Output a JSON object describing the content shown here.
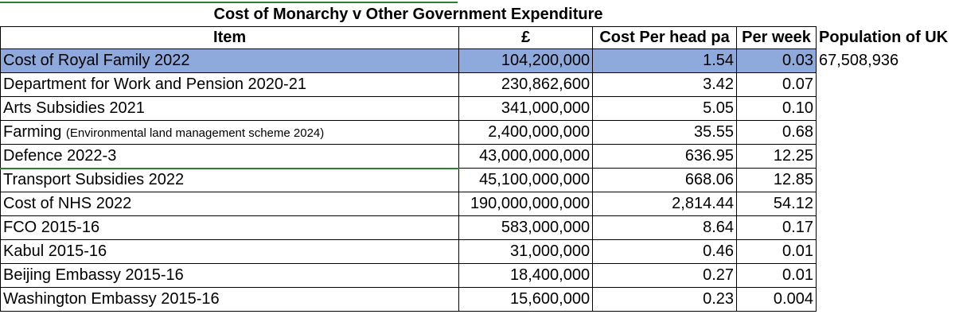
{
  "title": "Cost of Monarchy v Other Government Expenditure",
  "headers": {
    "item": "Item",
    "amount": "£",
    "per_head": "Cost Per head pa",
    "per_week": "Per week",
    "population": "Population of UK"
  },
  "population_value": "67,508,936",
  "rows": [
    {
      "item": "Cost of Royal Family 2022",
      "note": "",
      "amount": "104,200,000",
      "per_head": "1.54",
      "per_week": "0.03"
    },
    {
      "item": "Department for Work and Pension  2020-21",
      "note": "",
      "amount": "230,862,600",
      "per_head": "3.42",
      "per_week": "0.07"
    },
    {
      "item": "Arts Subsidies 2021",
      "note": "",
      "amount": "341,000,000",
      "per_head": "5.05",
      "per_week": "0.10"
    },
    {
      "item": "Farming",
      "note": "(Environmental land management scheme 2024)",
      "amount": "2,400,000,000",
      "per_head": "35.55",
      "per_week": "0.68"
    },
    {
      "item": "Defence 2022-3",
      "note": "",
      "amount": "43,000,000,000",
      "per_head": "636.95",
      "per_week": "12.25"
    },
    {
      "item": "Transport Subsidies 2022",
      "note": "",
      "amount": "45,100,000,000",
      "per_head": "668.06",
      "per_week": "12.85"
    },
    {
      "item": "Cost of NHS 2022",
      "note": "",
      "amount": "190,000,000,000",
      "per_head": "2,814.44",
      "per_week": "54.12"
    },
    {
      "item": "FCO 2015-16",
      "note": "",
      "amount": "583,000,000",
      "per_head": "8.64",
      "per_week": "0.17"
    },
    {
      "item": "Kabul 2015-16",
      "note": "",
      "amount": "31,000,000",
      "per_head": "0.46",
      "per_week": "0.01"
    },
    {
      "item": "Beijing Embassy 2015-16",
      "note": "",
      "amount": "18,400,000",
      "per_head": "0.27",
      "per_week": "0.01"
    },
    {
      "item": "Washington Embassy 2015-16",
      "note": "",
      "amount": "15,600,000",
      "per_head": "0.23",
      "per_week": "0.004"
    }
  ],
  "colors": {
    "highlight_row": "#8ea9db",
    "selection_border": "#2e7d32"
  }
}
